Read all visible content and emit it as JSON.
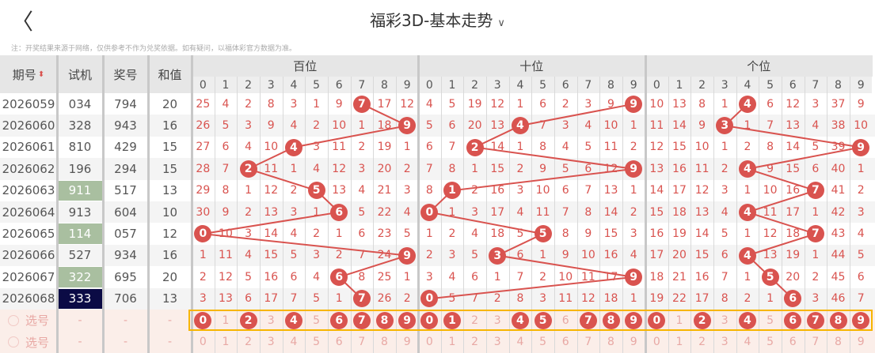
{
  "header": {
    "back_icon": "chevron-left-icon",
    "title": "福彩3D-基本走势",
    "dropdown_icon": "chevron-down-icon"
  },
  "note": "注：开奖结果来源于网络，仅供参考不作为兑奖依据。如有疑问，以福体彩官方数据为准。",
  "columns": {
    "period": "期号",
    "test": "试机",
    "draw": "奖号",
    "sum": "和值",
    "groups": [
      "百位",
      "十位",
      "个位"
    ],
    "digits": [
      "0",
      "1",
      "2",
      "3",
      "4",
      "5",
      "6",
      "7",
      "8",
      "9"
    ]
  },
  "colors": {
    "ball": "#d9534f",
    "test_green": "#a9bfa0",
    "test_navy": "#0b0b45",
    "select_border": "#f7b500",
    "select_bg": "#fbeee9"
  },
  "rows": [
    {
      "period": "2026059",
      "test": "034",
      "test_mark": "",
      "draw": "794",
      "sum": "20",
      "bai": [
        25,
        4,
        2,
        8,
        3,
        1,
        9,
        7,
        17,
        12
      ],
      "shi": [
        4,
        5,
        19,
        12,
        1,
        6,
        2,
        3,
        9,
        9
      ],
      "ge": [
        10,
        13,
        8,
        1,
        4,
        6,
        12,
        3,
        37,
        9
      ]
    },
    {
      "period": "2026060",
      "test": "328",
      "test_mark": "",
      "draw": "943",
      "sum": "16",
      "bai": [
        26,
        5,
        3,
        9,
        4,
        2,
        10,
        1,
        18,
        9
      ],
      "shi": [
        5,
        6,
        20,
        13,
        4,
        7,
        3,
        4,
        10,
        1
      ],
      "ge": [
        11,
        14,
        9,
        3,
        1,
        7,
        13,
        4,
        38,
        10
      ]
    },
    {
      "period": "2026061",
      "test": "810",
      "test_mark": "",
      "draw": "429",
      "sum": "15",
      "bai": [
        27,
        6,
        4,
        10,
        4,
        3,
        11,
        2,
        19,
        1
      ],
      "shi": [
        6,
        7,
        2,
        14,
        1,
        8,
        4,
        5,
        11,
        2
      ],
      "ge": [
        12,
        15,
        10,
        1,
        2,
        8,
        14,
        5,
        39,
        9
      ]
    },
    {
      "period": "2026062",
      "test": "196",
      "test_mark": "",
      "draw": "294",
      "sum": "15",
      "bai": [
        28,
        7,
        2,
        11,
        1,
        4,
        12,
        3,
        20,
        2
      ],
      "shi": [
        7,
        8,
        1,
        15,
        2,
        9,
        5,
        6,
        12,
        9
      ],
      "ge": [
        13,
        16,
        11,
        2,
        4,
        9,
        15,
        6,
        40,
        1
      ]
    },
    {
      "period": "2026063",
      "test": "911",
      "test_mark": "green",
      "draw": "517",
      "sum": "13",
      "bai": [
        29,
        8,
        1,
        12,
        2,
        5,
        13,
        4,
        21,
        3
      ],
      "shi": [
        8,
        1,
        2,
        16,
        3,
        10,
        6,
        7,
        13,
        1
      ],
      "ge": [
        14,
        17,
        12,
        3,
        1,
        10,
        16,
        7,
        41,
        2
      ]
    },
    {
      "period": "2026064",
      "test": "913",
      "test_mark": "",
      "draw": "604",
      "sum": "10",
      "bai": [
        30,
        9,
        2,
        13,
        3,
        1,
        6,
        5,
        22,
        4
      ],
      "shi": [
        0,
        1,
        3,
        17,
        4,
        11,
        7,
        8,
        14,
        2
      ],
      "ge": [
        15,
        18,
        13,
        4,
        4,
        11,
        17,
        1,
        42,
        3
      ]
    },
    {
      "period": "2026065",
      "test": "114",
      "test_mark": "green",
      "draw": "057",
      "sum": "12",
      "bai": [
        0,
        10,
        3,
        14,
        4,
        2,
        1,
        6,
        23,
        5
      ],
      "shi": [
        1,
        2,
        4,
        18,
        5,
        5,
        8,
        9,
        15,
        3
      ],
      "ge": [
        16,
        19,
        14,
        5,
        1,
        12,
        18,
        7,
        43,
        4
      ]
    },
    {
      "period": "2026066",
      "test": "527",
      "test_mark": "",
      "draw": "934",
      "sum": "16",
      "bai": [
        1,
        11,
        4,
        15,
        5,
        3,
        2,
        7,
        24,
        9
      ],
      "shi": [
        2,
        3,
        5,
        3,
        6,
        1,
        9,
        10,
        16,
        4
      ],
      "ge": [
        17,
        20,
        15,
        6,
        4,
        13,
        19,
        1,
        44,
        5
      ]
    },
    {
      "period": "2026067",
      "test": "322",
      "test_mark": "green",
      "draw": "695",
      "sum": "20",
      "bai": [
        2,
        12,
        5,
        16,
        6,
        4,
        6,
        8,
        25,
        1
      ],
      "shi": [
        3,
        4,
        6,
        1,
        7,
        2,
        10,
        11,
        17,
        9
      ],
      "ge": [
        18,
        21,
        16,
        7,
        1,
        5,
        20,
        2,
        45,
        6
      ]
    },
    {
      "period": "2026068",
      "test": "333",
      "test_mark": "navy",
      "draw": "706",
      "sum": "13",
      "bai": [
        3,
        13,
        6,
        17,
        7,
        5,
        1,
        7,
        26,
        2
      ],
      "shi": [
        0,
        5,
        7,
        2,
        8,
        3,
        11,
        12,
        18,
        1
      ],
      "ge": [
        19,
        22,
        17,
        8,
        2,
        1,
        6,
        3,
        46,
        7
      ]
    }
  ],
  "select_rows": [
    {
      "label": "选号",
      "dash": "-",
      "selected": {
        "bai": [
          0,
          2,
          4,
          6,
          7,
          8,
          9
        ],
        "shi": [
          0,
          1,
          4,
          5,
          7,
          8,
          9
        ],
        "ge": [
          0,
          2,
          4,
          6,
          7,
          8,
          9
        ]
      }
    },
    {
      "label": "选号",
      "dash": "-",
      "selected": {
        "bai": [],
        "shi": [],
        "ge": []
      }
    }
  ]
}
